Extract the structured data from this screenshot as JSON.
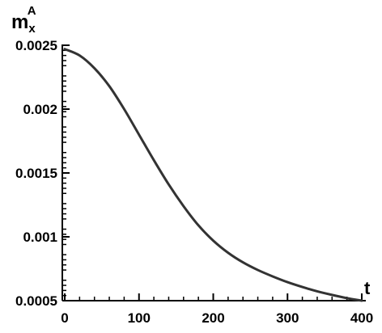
{
  "chart_data": {
    "type": "line",
    "title": "",
    "xlabel": "t",
    "ylabel": {
      "base": "m",
      "subscript": "x",
      "superscript": "A"
    },
    "xlim": [
      0,
      400
    ],
    "ylim": [
      0.0005,
      0.0025
    ],
    "x_ticks": [
      0,
      100,
      200,
      300,
      400
    ],
    "x_tick_labels": [
      "0",
      "100",
      "200",
      "300",
      "400"
    ],
    "y_ticks": [
      0.0005,
      0.001,
      0.0015,
      0.002,
      0.0025
    ],
    "y_tick_labels": [
      "0.0005",
      "0.001",
      "0.0015",
      "0.002",
      "0.0025"
    ],
    "grid": false,
    "line_color": "#333333",
    "series": [
      {
        "x": [
          0,
          20,
          40,
          60,
          80,
          100,
          120,
          140,
          160,
          180,
          200,
          220,
          240,
          260,
          280,
          300,
          320,
          340,
          360,
          380,
          400
        ],
        "y": [
          0.00247,
          0.00242,
          0.00232,
          0.00218,
          0.002,
          0.0018,
          0.0016,
          0.00141,
          0.00124,
          0.00109,
          0.00097,
          0.000875,
          0.0008,
          0.00074,
          0.00069,
          0.000645,
          0.000607,
          0.000573,
          0.000545,
          0.00052,
          0.0005
        ]
      }
    ]
  }
}
